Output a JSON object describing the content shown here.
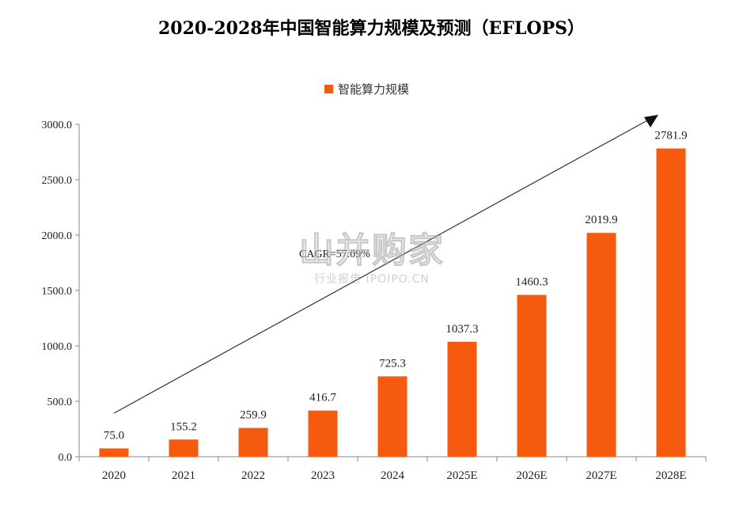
{
  "chart_data": {
    "type": "bar",
    "title": "2020-2028年中国智能算力规模及预测（EFLOPS）",
    "categories": [
      "2020",
      "2021",
      "2022",
      "2023",
      "2024",
      "2025E",
      "2026E",
      "2027E",
      "2028E"
    ],
    "series": [
      {
        "name": "智能算力规模",
        "values": [
          75.0,
          155.2,
          259.9,
          416.7,
          725.3,
          1037.3,
          1460.3,
          2019.9,
          2781.9
        ],
        "color": "#f55a0e"
      }
    ],
    "data_labels": [
      "75.0",
      "155.2",
      "259.9",
      "416.7",
      "725.3",
      "1037.3",
      "1460.3",
      "2019.9",
      "2781.9"
    ],
    "ylim": [
      0,
      3000
    ],
    "yticks": [
      0,
      500,
      1000,
      1500,
      2000,
      2500,
      3000
    ],
    "ytick_labels": [
      "0.0",
      "500.0",
      "1000.0",
      "1500.0",
      "2000.0",
      "2500.0",
      "3000.0"
    ],
    "legend_position": "top-center",
    "grid": false,
    "annotation": {
      "text": "CAGR=57.09%"
    }
  },
  "watermark": {
    "main": "山并购家",
    "sub": "行业报告 IPOIPO.CN"
  }
}
